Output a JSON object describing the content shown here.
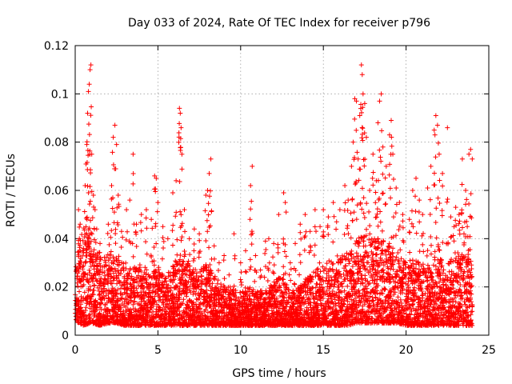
{
  "chart_data": {
    "type": "scatter",
    "title": "Day 033 of 2024, Rate Of TEC Index for receiver p796",
    "xlabel": "GPS time / hours",
    "ylabel": "ROTI / TECUs",
    "xlim": [
      0,
      25
    ],
    "ylim": [
      0,
      0.12
    ],
    "x_ticks": [
      0,
      5,
      10,
      15,
      20,
      25
    ],
    "y_ticks": [
      0,
      0.02,
      0.04,
      0.06,
      0.08,
      0.1,
      0.12
    ],
    "x_tick_labels": [
      "0",
      "5",
      "10",
      "15",
      "20",
      "25"
    ],
    "y_tick_labels": [
      "0",
      "0.02",
      "0.04",
      "0.06",
      "0.08",
      "0.1",
      "0.12"
    ],
    "grid": true,
    "marker": "plus",
    "colors": {
      "series": "#ff0000"
    },
    "series": [
      {
        "points": [
          [
            0.2,
            0.052
          ],
          [
            0.3,
            0.046
          ],
          [
            0.5,
            0.036
          ],
          [
            0.6,
            0.062
          ],
          [
            0.7,
            0.079
          ],
          [
            0.75,
            0.092
          ],
          [
            0.8,
            0.101
          ],
          [
            0.85,
            0.104
          ],
          [
            0.9,
            0.11
          ],
          [
            0.95,
            0.112
          ],
          [
            1.0,
            0.075
          ],
          [
            1.1,
            0.058
          ],
          [
            1.2,
            0.052
          ],
          [
            1.3,
            0.044
          ],
          [
            1.5,
            0.038
          ],
          [
            2.0,
            0.046
          ],
          [
            2.2,
            0.062
          ],
          [
            2.3,
            0.082
          ],
          [
            2.4,
            0.087
          ],
          [
            2.5,
            0.079
          ],
          [
            2.6,
            0.058
          ],
          [
            2.8,
            0.043
          ],
          [
            3.1,
            0.052
          ],
          [
            3.3,
            0.056
          ],
          [
            3.5,
            0.075
          ],
          [
            3.7,
            0.046
          ],
          [
            4.0,
            0.05
          ],
          [
            4.3,
            0.052
          ],
          [
            4.6,
            0.048
          ],
          [
            4.8,
            0.066
          ],
          [
            4.9,
            0.065
          ],
          [
            5.0,
            0.055
          ],
          [
            5.3,
            0.045
          ],
          [
            5.6,
            0.04
          ],
          [
            5.9,
            0.059
          ],
          [
            6.1,
            0.064
          ],
          [
            6.3,
            0.094
          ],
          [
            6.35,
            0.092
          ],
          [
            6.4,
            0.086
          ],
          [
            6.45,
            0.075
          ],
          [
            6.6,
            0.052
          ],
          [
            6.9,
            0.04
          ],
          [
            7.2,
            0.044
          ],
          [
            7.5,
            0.042
          ],
          [
            7.9,
            0.058
          ],
          [
            8.0,
            0.06
          ],
          [
            8.1,
            0.067
          ],
          [
            8.2,
            0.073
          ],
          [
            8.4,
            0.037
          ],
          [
            8.7,
            0.03
          ],
          [
            9.0,
            0.033
          ],
          [
            9.3,
            0.025
          ],
          [
            9.6,
            0.042
          ],
          [
            10.0,
            0.03
          ],
          [
            10.3,
            0.035
          ],
          [
            10.6,
            0.062
          ],
          [
            10.7,
            0.07
          ],
          [
            10.9,
            0.033
          ],
          [
            11.2,
            0.027
          ],
          [
            11.5,
            0.039
          ],
          [
            11.7,
            0.04
          ],
          [
            12.0,
            0.038
          ],
          [
            12.3,
            0.05
          ],
          [
            12.6,
            0.059
          ],
          [
            12.7,
            0.055
          ],
          [
            13.0,
            0.03
          ],
          [
            13.3,
            0.038
          ],
          [
            13.6,
            0.046
          ],
          [
            13.9,
            0.05
          ],
          [
            14.2,
            0.043
          ],
          [
            14.5,
            0.052
          ],
          [
            14.8,
            0.045
          ],
          [
            15.0,
            0.052
          ],
          [
            15.3,
            0.049
          ],
          [
            15.6,
            0.055
          ],
          [
            15.8,
            0.047
          ],
          [
            16.0,
            0.052
          ],
          [
            16.3,
            0.062
          ],
          [
            16.5,
            0.056
          ],
          [
            16.7,
            0.07
          ],
          [
            16.8,
            0.08
          ],
          [
            16.9,
            0.098
          ],
          [
            17.0,
            0.097
          ],
          [
            17.1,
            0.073
          ],
          [
            17.2,
            0.091
          ],
          [
            17.3,
            0.112
          ],
          [
            17.35,
            0.108
          ],
          [
            17.4,
            0.1
          ],
          [
            17.5,
            0.096
          ],
          [
            17.6,
            0.082
          ],
          [
            17.8,
            0.06
          ],
          [
            18.0,
            0.075
          ],
          [
            18.2,
            0.064
          ],
          [
            18.3,
            0.088
          ],
          [
            18.4,
            0.097
          ],
          [
            18.5,
            0.1
          ],
          [
            18.6,
            0.078
          ],
          [
            18.8,
            0.07
          ],
          [
            19.0,
            0.083
          ],
          [
            19.1,
            0.089
          ],
          [
            19.2,
            0.075
          ],
          [
            19.4,
            0.061
          ],
          [
            19.6,
            0.055
          ],
          [
            19.8,
            0.05
          ],
          [
            20.2,
            0.048
          ],
          [
            20.4,
            0.06
          ],
          [
            20.6,
            0.065
          ],
          [
            20.8,
            0.056
          ],
          [
            21.0,
            0.05
          ],
          [
            21.3,
            0.061
          ],
          [
            21.5,
            0.07
          ],
          [
            21.7,
            0.085
          ],
          [
            21.8,
            0.091
          ],
          [
            21.9,
            0.087
          ],
          [
            22.0,
            0.075
          ],
          [
            22.2,
            0.067
          ],
          [
            22.5,
            0.086
          ],
          [
            22.7,
            0.049
          ],
          [
            23.0,
            0.053
          ],
          [
            23.2,
            0.05
          ],
          [
            23.4,
            0.073
          ],
          [
            23.6,
            0.06
          ],
          [
            23.8,
            0.075
          ],
          [
            23.9,
            0.077
          ],
          [
            24.0,
            0.073
          ],
          [
            23.7,
            0.045
          ],
          [
            23.5,
            0.042
          ],
          [
            22.9,
            0.045
          ]
        ],
        "baseline_envelope": [
          [
            0.0,
            0.006,
            0.03
          ],
          [
            0.5,
            0.004,
            0.045
          ],
          [
            1.0,
            0.005,
            0.045
          ],
          [
            1.5,
            0.004,
            0.033
          ],
          [
            2.0,
            0.005,
            0.035
          ],
          [
            2.5,
            0.005,
            0.034
          ],
          [
            3.0,
            0.004,
            0.03
          ],
          [
            3.5,
            0.004,
            0.028
          ],
          [
            4.0,
            0.004,
            0.03
          ],
          [
            4.5,
            0.004,
            0.026
          ],
          [
            5.0,
            0.004,
            0.027
          ],
          [
            5.5,
            0.004,
            0.024
          ],
          [
            6.0,
            0.004,
            0.03
          ],
          [
            6.5,
            0.004,
            0.034
          ],
          [
            7.0,
            0.004,
            0.028
          ],
          [
            7.5,
            0.004,
            0.027
          ],
          [
            8.0,
            0.004,
            0.03
          ],
          [
            8.5,
            0.004,
            0.024
          ],
          [
            9.0,
            0.004,
            0.02
          ],
          [
            9.5,
            0.004,
            0.02
          ],
          [
            10.0,
            0.004,
            0.018
          ],
          [
            10.5,
            0.004,
            0.02
          ],
          [
            11.0,
            0.004,
            0.018
          ],
          [
            11.5,
            0.004,
            0.019
          ],
          [
            12.0,
            0.004,
            0.022
          ],
          [
            12.5,
            0.004,
            0.025
          ],
          [
            13.0,
            0.004,
            0.018
          ],
          [
            13.5,
            0.004,
            0.02
          ],
          [
            14.0,
            0.004,
            0.024
          ],
          [
            14.5,
            0.004,
            0.027
          ],
          [
            15.0,
            0.004,
            0.03
          ],
          [
            15.5,
            0.004,
            0.032
          ],
          [
            16.0,
            0.004,
            0.032
          ],
          [
            16.5,
            0.004,
            0.035
          ],
          [
            17.0,
            0.005,
            0.04
          ],
          [
            17.5,
            0.005,
            0.042
          ],
          [
            18.0,
            0.005,
            0.04
          ],
          [
            18.5,
            0.005,
            0.04
          ],
          [
            19.0,
            0.005,
            0.038
          ],
          [
            19.5,
            0.005,
            0.035
          ],
          [
            20.0,
            0.004,
            0.03
          ],
          [
            20.5,
            0.004,
            0.032
          ],
          [
            21.0,
            0.004,
            0.03
          ],
          [
            21.5,
            0.004,
            0.03
          ],
          [
            22.0,
            0.004,
            0.033
          ],
          [
            22.5,
            0.004,
            0.03
          ],
          [
            23.0,
            0.004,
            0.034
          ],
          [
            23.5,
            0.004,
            0.036
          ],
          [
            24.0,
            0.004,
            0.03
          ]
        ]
      }
    ]
  }
}
